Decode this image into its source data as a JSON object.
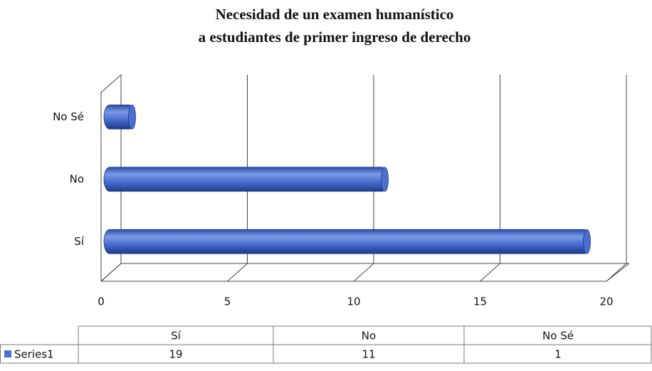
{
  "chart_data": {
    "type": "bar",
    "orientation": "horizontal",
    "title": "Necesidad de un examen humanístico",
    "subtitle": "a estudiantes de primer ingreso de derecho",
    "categories": [
      "Sí",
      "No",
      "No Sé"
    ],
    "series": [
      {
        "name": "Series1",
        "color": "#4a6fd0",
        "values": [
          19,
          11,
          1
        ]
      }
    ],
    "xlim": [
      0,
      20
    ],
    "xticks": [
      0,
      5,
      10,
      15,
      20
    ],
    "grid": true,
    "data_table": true
  }
}
